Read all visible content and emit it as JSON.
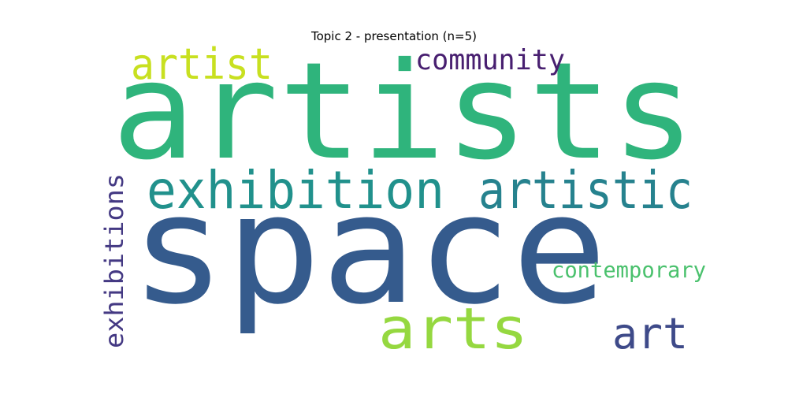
{
  "title": "Topic 2 - presentation (n=5)",
  "words": [
    {
      "text": "artists",
      "color": "#2fb47c"
    },
    {
      "text": "space",
      "color": "#355b8d"
    },
    {
      "text": "exhibition",
      "color": "#21918c"
    },
    {
      "text": "artistic",
      "color": "#26828e"
    },
    {
      "text": "arts",
      "color": "#95d840"
    },
    {
      "text": "artist",
      "color": "#c8e020"
    },
    {
      "text": "community",
      "color": "#481f70"
    },
    {
      "text": "exhibitions",
      "color": "#443983"
    },
    {
      "text": "art",
      "color": "#3e4a89"
    },
    {
      "text": "contemporary",
      "color": "#4ac16d"
    }
  ]
}
